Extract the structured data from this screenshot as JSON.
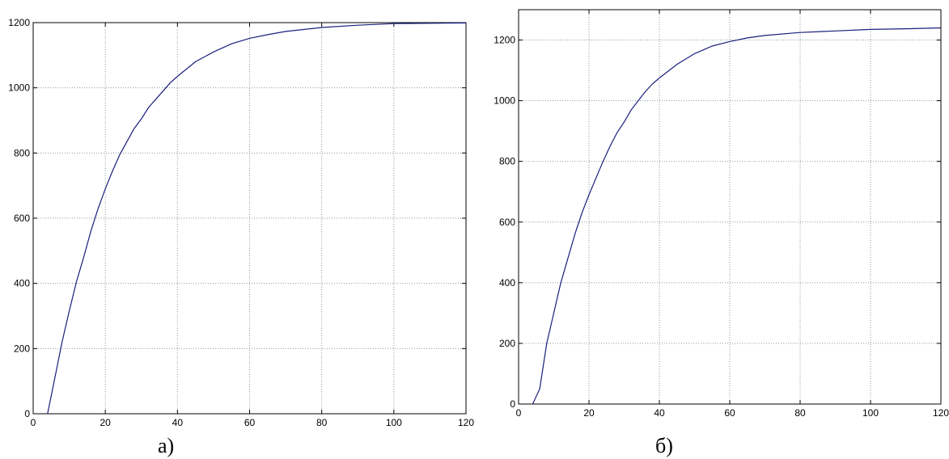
{
  "chart_data": [
    {
      "type": "line",
      "caption": "а)",
      "xlim": [
        0,
        120
      ],
      "ylim": [
        0,
        1200
      ],
      "xticks": [
        0,
        20,
        40,
        60,
        80,
        100,
        120
      ],
      "yticks": [
        0,
        200,
        400,
        600,
        800,
        1000,
        1200
      ],
      "grid": true,
      "series": [
        {
          "color": "#1a1f7a",
          "x": [
            4,
            6,
            8,
            10,
            12,
            14,
            16,
            18,
            20,
            22,
            24,
            26,
            28,
            30,
            32,
            34,
            36,
            38,
            40,
            45,
            50,
            55,
            60,
            65,
            70,
            80,
            90,
            100,
            110,
            120
          ],
          "y": [
            0,
            110,
            220,
            315,
            405,
            480,
            560,
            630,
            690,
            745,
            795,
            835,
            875,
            905,
            940,
            965,
            990,
            1015,
            1035,
            1080,
            1110,
            1135,
            1152,
            1163,
            1173,
            1185,
            1192,
            1197,
            1198,
            1199
          ]
        }
      ]
    },
    {
      "type": "line",
      "caption": "б)",
      "xlim": [
        0,
        120
      ],
      "ylim": [
        0,
        1300
      ],
      "xticks": [
        0,
        20,
        40,
        60,
        80,
        100,
        120
      ],
      "yticks": [
        0,
        200,
        400,
        600,
        800,
        1000,
        1200
      ],
      "grid": true,
      "series": [
        {
          "color": "#1a1f7a",
          "x": [
            4,
            6,
            8,
            10,
            12,
            14,
            16,
            18,
            20,
            22,
            24,
            26,
            28,
            30,
            32,
            34,
            36,
            38,
            40,
            45,
            50,
            55,
            60,
            65,
            70,
            80,
            90,
            100,
            110,
            120
          ],
          "y": [
            0,
            50,
            200,
            300,
            400,
            480,
            560,
            630,
            690,
            745,
            800,
            850,
            895,
            930,
            970,
            1000,
            1030,
            1055,
            1075,
            1120,
            1155,
            1180,
            1195,
            1207,
            1215,
            1225,
            1230,
            1235,
            1237,
            1240
          ]
        }
      ]
    }
  ]
}
